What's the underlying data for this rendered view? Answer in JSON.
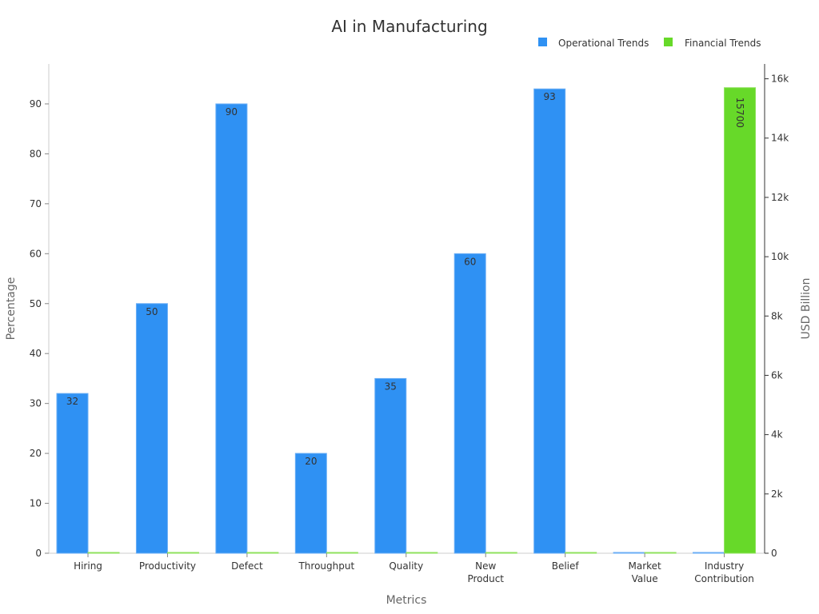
{
  "chart_data": {
    "type": "bar",
    "title": "AI in Manufacturing",
    "xlabel": "Metrics",
    "ylabel": "Percentage",
    "y2label": "USD Billion",
    "categories": [
      [
        "Hiring"
      ],
      [
        "Productivity"
      ],
      [
        "Defect"
      ],
      [
        "Throughput"
      ],
      [
        "Quality"
      ],
      [
        "New",
        "Product"
      ],
      [
        "Belief"
      ],
      [
        "Market",
        "Value"
      ],
      [
        "Industry",
        "Contribution"
      ]
    ],
    "ylim": [
      0,
      98
    ],
    "y2lim": [
      0,
      16500
    ],
    "yticks": [
      0,
      10,
      20,
      30,
      40,
      50,
      60,
      70,
      80,
      90
    ],
    "y2ticks": [
      0,
      2000,
      4000,
      6000,
      8000,
      10000,
      12000,
      14000,
      16000
    ],
    "y2tick_labels": [
      "0",
      "2k",
      "4k",
      "6k",
      "8k",
      "10k",
      "12k",
      "14k",
      "16k"
    ],
    "legend_position": "top-right",
    "series": [
      {
        "name": "Operational Trends",
        "axis": "left",
        "color": "#2f91f3",
        "values": [
          32,
          50,
          90,
          20,
          35,
          60,
          93,
          0,
          0
        ],
        "labels": [
          "32",
          "50",
          "90",
          "20",
          "35",
          "60",
          "93",
          "",
          ""
        ]
      },
      {
        "name": "Financial Trends",
        "axis": "right",
        "color": "#67d929",
        "values": [
          0,
          0,
          0,
          0,
          0,
          0,
          0,
          0,
          15700
        ],
        "labels": [
          "",
          "",
          "",
          "",
          "",
          "",
          "",
          "",
          "15700"
        ]
      }
    ]
  }
}
